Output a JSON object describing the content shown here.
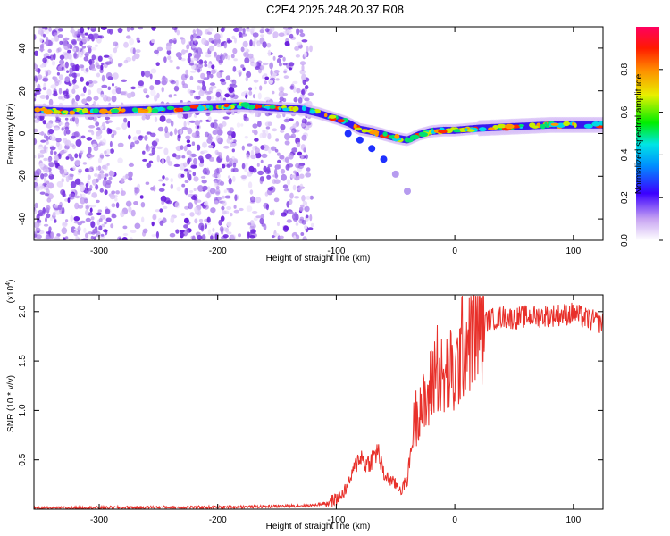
{
  "title": "C2E4.2025.248.20.37.R08",
  "chart_data": [
    {
      "type": "heatmap",
      "xlabel": "Height of straight line (km)",
      "ylabel": "Frequency (Hz)",
      "xlim": [
        -355,
        125
      ],
      "ylim": [
        -50,
        50
      ],
      "xticks": [
        -300,
        -200,
        -100,
        0,
        100
      ],
      "yticks": [
        -40,
        -20,
        0,
        20,
        40
      ],
      "colorbar": {
        "label": "Normalized spectral amplitude",
        "ticks": [
          "0.0",
          "0.2",
          "0.4",
          "0.6",
          "0.8"
        ],
        "range": [
          0,
          1
        ]
      },
      "ridge": {
        "x": [
          -350,
          -330,
          -300,
          -270,
          -240,
          -210,
          -180,
          -150,
          -130,
          -115,
          -100,
          -90,
          -80,
          -70,
          -60,
          -50,
          -40,
          -30,
          -20,
          -10,
          0,
          10,
          20,
          40,
          60,
          80,
          100,
          115,
          125
        ],
        "y": [
          11,
          10.5,
          10.5,
          11,
          11.5,
          12.5,
          13,
          12,
          11.5,
          9.5,
          7,
          5,
          2,
          1,
          -0.5,
          -2,
          -3,
          -0.5,
          1,
          1.5,
          1.5,
          2,
          2.5,
          3,
          3.5,
          4,
          4,
          4,
          4
        ]
      },
      "branch": {
        "x": [
          -90,
          -80,
          -70,
          -60,
          -50,
          -40
        ],
        "y": [
          0,
          -3,
          -7,
          -12,
          -19,
          -27
        ]
      }
    },
    {
      "type": "line",
      "xlabel": "Height of straight line (km)",
      "ylabel": "SNR (10 * v/v)",
      "y_multiplier_label": "(x10",
      "y_multiplier_exp": "4",
      "xlim": [
        -355,
        125
      ],
      "ylim": [
        0,
        2.17
      ],
      "xticks": [
        -300,
        -200,
        -100,
        0,
        100
      ],
      "yticks": [
        0.5,
        1.0,
        1.5,
        2.0
      ],
      "color": "#e8302a",
      "series": [
        {
          "x": [
            -355,
            -300,
            -250,
            -200,
            -150,
            -120,
            -110,
            -100,
            -95,
            -90,
            -85,
            -80,
            -75,
            -70,
            -65,
            -60,
            -55,
            -50,
            -45,
            -40,
            -35,
            -30,
            -25,
            -20,
            -15,
            -10,
            -5,
            0,
            5,
            10,
            15,
            20,
            25,
            30,
            40,
            50,
            60,
            70,
            80,
            90,
            100,
            110,
            125
          ],
          "values": [
            0.01,
            0.015,
            0.02,
            0.02,
            0.03,
            0.04,
            0.06,
            0.1,
            0.15,
            0.25,
            0.4,
            0.55,
            0.45,
            0.5,
            0.6,
            0.35,
            0.3,
            0.25,
            0.2,
            0.3,
            0.8,
            1.1,
            1.0,
            1.25,
            1.5,
            1.25,
            1.4,
            1.3,
            1.6,
            1.75,
            1.8,
            1.85,
            1.9,
            1.92,
            1.95,
            1.93,
            1.95,
            1.95,
            1.96,
            1.97,
            1.98,
            1.93,
            1.88
          ]
        }
      ]
    }
  ]
}
